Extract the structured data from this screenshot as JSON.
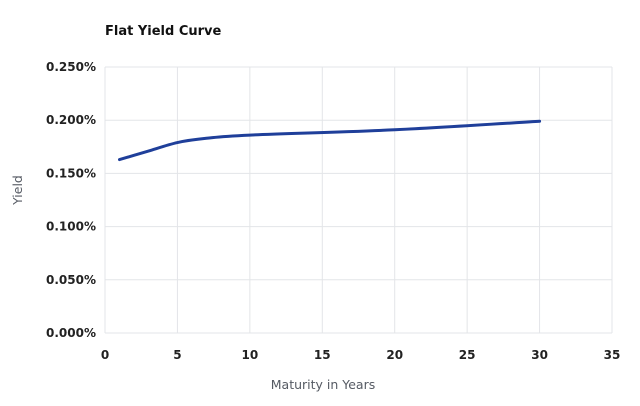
{
  "chart_data": {
    "type": "line",
    "title": "Flat Yield Curve",
    "xlabel": "Maturity in Years",
    "ylabel": "Yield",
    "xlim": [
      0,
      35
    ],
    "ylim": [
      0,
      0.25
    ],
    "x_ticks": [
      "0",
      "5",
      "10",
      "15",
      "20",
      "25",
      "30",
      "35"
    ],
    "y_ticks": [
      "0.000%",
      "0.050%",
      "0.100%",
      "0.150%",
      "0.200%",
      "0.250%"
    ],
    "grid": true,
    "legend": "none",
    "line_color": "#1f3f9a",
    "series": [
      {
        "x": [
          1,
          2,
          3,
          5,
          7,
          10,
          20,
          30
        ],
        "y": [
          0.163,
          0.167,
          0.171,
          0.179,
          0.183,
          0.186,
          0.191,
          0.199
        ]
      }
    ]
  }
}
